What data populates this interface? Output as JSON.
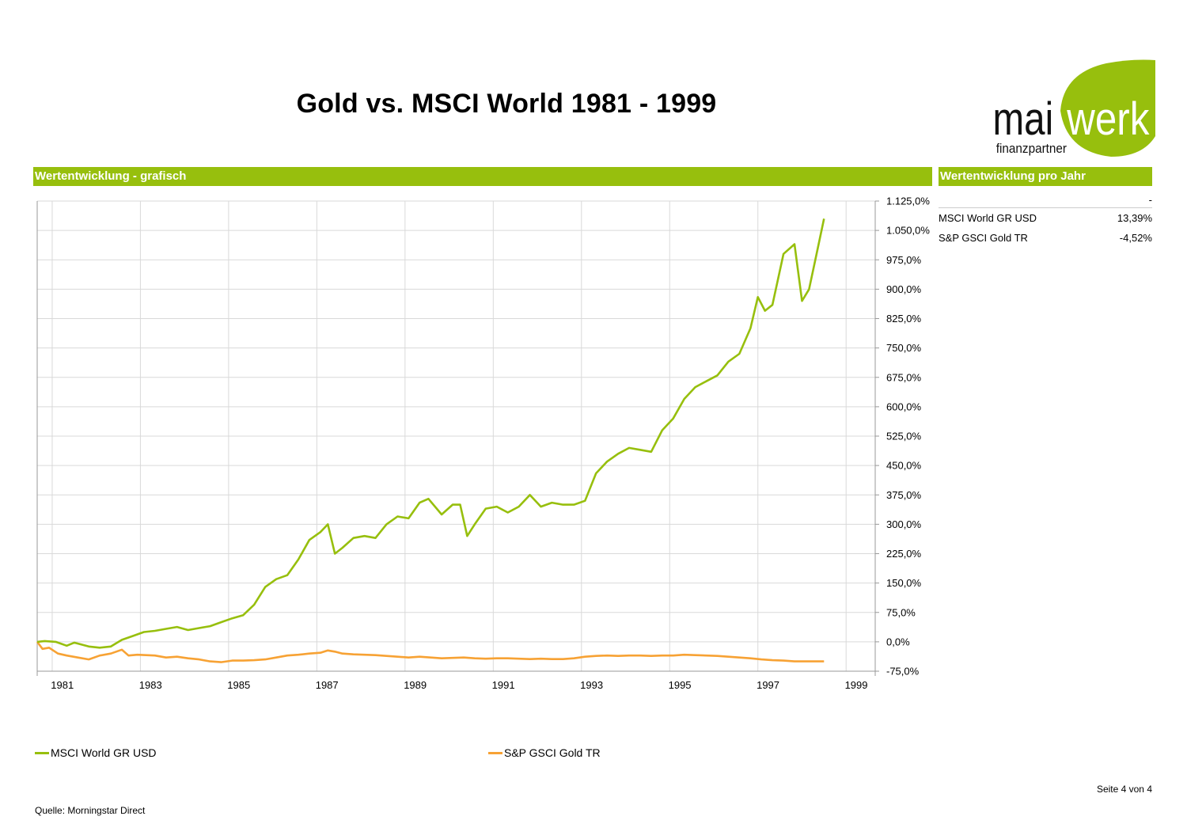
{
  "header": {
    "title": "Gold vs. MSCI World 1981 - 1999",
    "logo_text_a": "mai",
    "logo_text_b": "werk",
    "logo_sub": "finanzpartner"
  },
  "colors": {
    "accent": "#97bf0d",
    "msci": "#97bf0d",
    "gold": "#f7a234",
    "grid": "#d9d9d9"
  },
  "sections": {
    "chart_header": "Wertentwicklung - grafisch",
    "table_header": "Wertentwicklung pro Jahr"
  },
  "yearly_table": {
    "column_label": "-",
    "rows": [
      {
        "name": "MSCI World GR USD",
        "value": "13,39%"
      },
      {
        "name": "S&P GSCI Gold TR",
        "value": "-4,52%"
      }
    ]
  },
  "legend": [
    {
      "label": "MSCI World GR USD",
      "color": "#97bf0d"
    },
    {
      "label": "S&P GSCI Gold TR",
      "color": "#f7a234"
    }
  ],
  "footer": {
    "page": "Seite 4 von 4",
    "source": "Quelle: Morningstar Direct"
  },
  "chart_data": {
    "type": "line",
    "title": "",
    "xlabel": "",
    "ylabel": "",
    "xlim": [
      1980.33,
      1999.33
    ],
    "ylim": [
      -75,
      1125
    ],
    "yticks": [
      -75,
      0,
      75,
      150,
      225,
      300,
      375,
      450,
      525,
      600,
      675,
      750,
      825,
      900,
      975,
      1050,
      1125
    ],
    "ytick_labels": [
      "-75,0%",
      "0,0%",
      "75,0%",
      "150,0%",
      "225,0%",
      "300,0%",
      "375,0%",
      "450,0%",
      "525,0%",
      "600,0%",
      "675,0%",
      "750,0%",
      "825,0%",
      "900,0%",
      "975,0%",
      "1.050,0%",
      "1.125,0%"
    ],
    "xticks": [
      1981,
      1983,
      1985,
      1987,
      1989,
      1991,
      1993,
      1995,
      1997,
      1999
    ],
    "xtick_labels": [
      "1981",
      "1983",
      "1985",
      "1987",
      "1989",
      "1991",
      "1993",
      "1995",
      "1997",
      "1999"
    ],
    "grid": true,
    "series": [
      {
        "name": "MSCI World GR USD",
        "color": "#97bf0d",
        "points": [
          [
            1980.33,
            0
          ],
          [
            1980.5,
            2
          ],
          [
            1980.75,
            0
          ],
          [
            1981.0,
            -10
          ],
          [
            1981.17,
            -2
          ],
          [
            1981.5,
            -12
          ],
          [
            1981.75,
            -15
          ],
          [
            1982.0,
            -12
          ],
          [
            1982.25,
            5
          ],
          [
            1982.5,
            15
          ],
          [
            1982.75,
            25
          ],
          [
            1983.0,
            28
          ],
          [
            1983.25,
            33
          ],
          [
            1983.5,
            38
          ],
          [
            1983.75,
            30
          ],
          [
            1984.0,
            35
          ],
          [
            1984.25,
            40
          ],
          [
            1984.5,
            50
          ],
          [
            1984.75,
            60
          ],
          [
            1985.0,
            68
          ],
          [
            1985.25,
            95
          ],
          [
            1985.5,
            140
          ],
          [
            1985.75,
            160
          ],
          [
            1986.0,
            170
          ],
          [
            1986.25,
            210
          ],
          [
            1986.5,
            260
          ],
          [
            1986.75,
            280
          ],
          [
            1986.92,
            300
          ],
          [
            1987.08,
            225
          ],
          [
            1987.25,
            240
          ],
          [
            1987.5,
            265
          ],
          [
            1987.75,
            270
          ],
          [
            1988.0,
            265
          ],
          [
            1988.25,
            300
          ],
          [
            1988.5,
            320
          ],
          [
            1988.75,
            315
          ],
          [
            1989.0,
            355
          ],
          [
            1989.2,
            365
          ],
          [
            1989.5,
            325
          ],
          [
            1989.75,
            350
          ],
          [
            1989.92,
            350
          ],
          [
            1990.08,
            270
          ],
          [
            1990.25,
            300
          ],
          [
            1990.5,
            340
          ],
          [
            1990.75,
            345
          ],
          [
            1991.0,
            330
          ],
          [
            1991.25,
            345
          ],
          [
            1991.5,
            375
          ],
          [
            1991.75,
            345
          ],
          [
            1992.0,
            355
          ],
          [
            1992.25,
            350
          ],
          [
            1992.5,
            350
          ],
          [
            1992.75,
            360
          ],
          [
            1993.0,
            430
          ],
          [
            1993.25,
            460
          ],
          [
            1993.5,
            480
          ],
          [
            1993.75,
            495
          ],
          [
            1994.0,
            490
          ],
          [
            1994.25,
            485
          ],
          [
            1994.5,
            540
          ],
          [
            1994.75,
            570
          ],
          [
            1995.0,
            620
          ],
          [
            1995.25,
            650
          ],
          [
            1995.5,
            665
          ],
          [
            1995.75,
            680
          ],
          [
            1996.0,
            715
          ],
          [
            1996.25,
            735
          ],
          [
            1996.5,
            800
          ],
          [
            1996.67,
            880
          ],
          [
            1996.83,
            845
          ],
          [
            1997.0,
            860
          ],
          [
            1997.25,
            990
          ],
          [
            1997.5,
            1015
          ],
          [
            1997.67,
            870
          ],
          [
            1997.83,
            900
          ],
          [
            1998.0,
            990
          ],
          [
            1998.17,
            1080
          ]
        ]
      },
      {
        "name": "S&P GSCI Gold TR",
        "color": "#f7a234",
        "points": [
          [
            1980.33,
            0
          ],
          [
            1980.45,
            -18
          ],
          [
            1980.6,
            -15
          ],
          [
            1980.8,
            -30
          ],
          [
            1981.0,
            -35
          ],
          [
            1981.25,
            -40
          ],
          [
            1981.5,
            -45
          ],
          [
            1981.75,
            -35
          ],
          [
            1982.0,
            -30
          ],
          [
            1982.25,
            -20
          ],
          [
            1982.4,
            -35
          ],
          [
            1982.6,
            -33
          ],
          [
            1983.0,
            -35
          ],
          [
            1983.25,
            -40
          ],
          [
            1983.5,
            -38
          ],
          [
            1983.75,
            -42
          ],
          [
            1984.0,
            -45
          ],
          [
            1984.25,
            -50
          ],
          [
            1984.5,
            -52
          ],
          [
            1984.75,
            -48
          ],
          [
            1985.0,
            -48
          ],
          [
            1985.25,
            -47
          ],
          [
            1985.5,
            -45
          ],
          [
            1985.75,
            -40
          ],
          [
            1986.0,
            -35
          ],
          [
            1986.25,
            -33
          ],
          [
            1986.5,
            -30
          ],
          [
            1986.75,
            -28
          ],
          [
            1986.92,
            -22
          ],
          [
            1987.08,
            -25
          ],
          [
            1987.25,
            -30
          ],
          [
            1987.5,
            -32
          ],
          [
            1987.75,
            -33
          ],
          [
            1988.0,
            -34
          ],
          [
            1988.25,
            -36
          ],
          [
            1988.5,
            -38
          ],
          [
            1988.75,
            -40
          ],
          [
            1989.0,
            -38
          ],
          [
            1989.25,
            -40
          ],
          [
            1989.5,
            -42
          ],
          [
            1989.75,
            -41
          ],
          [
            1990.0,
            -40
          ],
          [
            1990.25,
            -42
          ],
          [
            1990.5,
            -43
          ],
          [
            1990.75,
            -42
          ],
          [
            1991.0,
            -42
          ],
          [
            1991.25,
            -43
          ],
          [
            1991.5,
            -44
          ],
          [
            1991.75,
            -43
          ],
          [
            1992.0,
            -44
          ],
          [
            1992.25,
            -44
          ],
          [
            1992.5,
            -42
          ],
          [
            1992.75,
            -38
          ],
          [
            1993.0,
            -36
          ],
          [
            1993.25,
            -35
          ],
          [
            1993.5,
            -36
          ],
          [
            1993.75,
            -35
          ],
          [
            1994.0,
            -35
          ],
          [
            1994.25,
            -36
          ],
          [
            1994.5,
            -35
          ],
          [
            1994.75,
            -35
          ],
          [
            1995.0,
            -33
          ],
          [
            1995.25,
            -34
          ],
          [
            1995.5,
            -35
          ],
          [
            1995.75,
            -36
          ],
          [
            1996.0,
            -38
          ],
          [
            1996.25,
            -40
          ],
          [
            1996.5,
            -42
          ],
          [
            1996.75,
            -45
          ],
          [
            1997.0,
            -47
          ],
          [
            1997.25,
            -48
          ],
          [
            1997.5,
            -50
          ],
          [
            1997.75,
            -50
          ],
          [
            1998.0,
            -50
          ],
          [
            1998.17,
            -50
          ]
        ]
      }
    ]
  }
}
